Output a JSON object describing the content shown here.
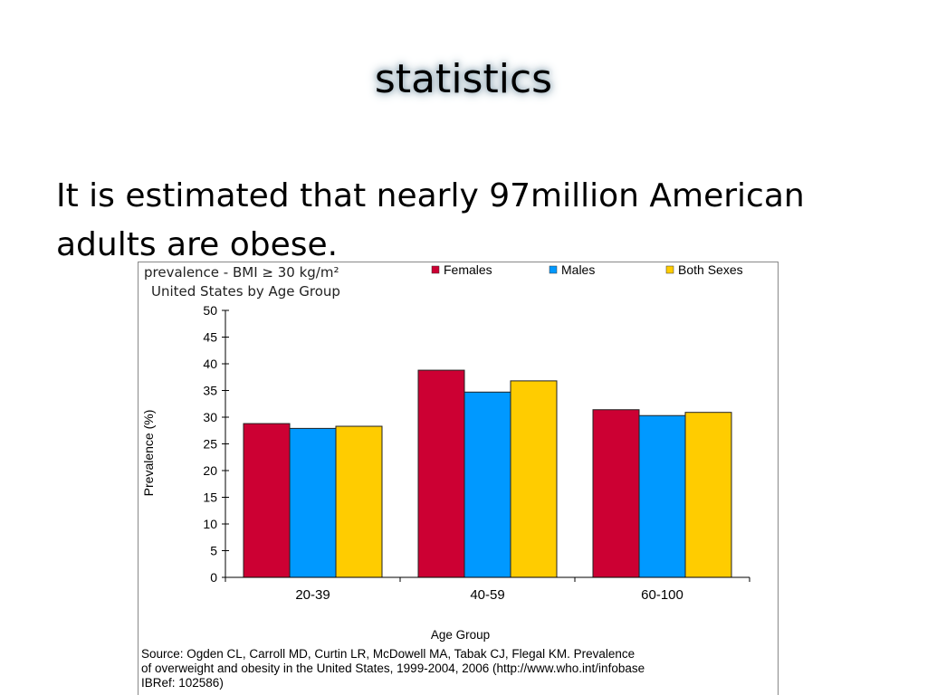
{
  "slide": {
    "title": "statistics",
    "body": "It is estimated that nearly 97million American adults are obese."
  },
  "chart_data": {
    "type": "bar",
    "title_line1": "prevalence - BMI ≥ 30 kg/m²",
    "title_line2": "United States by Age Group",
    "xlabel": "Age Group",
    "ylabel": "Prevalence (%)",
    "ylim": [
      0,
      50
    ],
    "yticks": [
      0,
      5,
      10,
      15,
      20,
      25,
      30,
      35,
      40,
      45,
      50
    ],
    "categories": [
      "20-39",
      "40-59",
      "60-100"
    ],
    "series": [
      {
        "name": "Females",
        "color": "#cc0033",
        "values": [
          28.8,
          38.8,
          31.4
        ]
      },
      {
        "name": "Males",
        "color": "#0099ff",
        "values": [
          27.9,
          34.7,
          30.3
        ]
      },
      {
        "name": "Both Sexes",
        "color": "#ffcc00",
        "values": [
          28.3,
          36.8,
          30.9
        ]
      }
    ],
    "legend_position": "top-right",
    "grid": false,
    "source": "Source: Ogden CL, Carroll MD, Curtin LR, McDowell MA, Tabak CJ, Flegal KM. Prevalence\n of overweight and obesity in the United States, 1999-2004, 2006  (http://www.who.int/infobase\n IBRef: 102586)"
  }
}
